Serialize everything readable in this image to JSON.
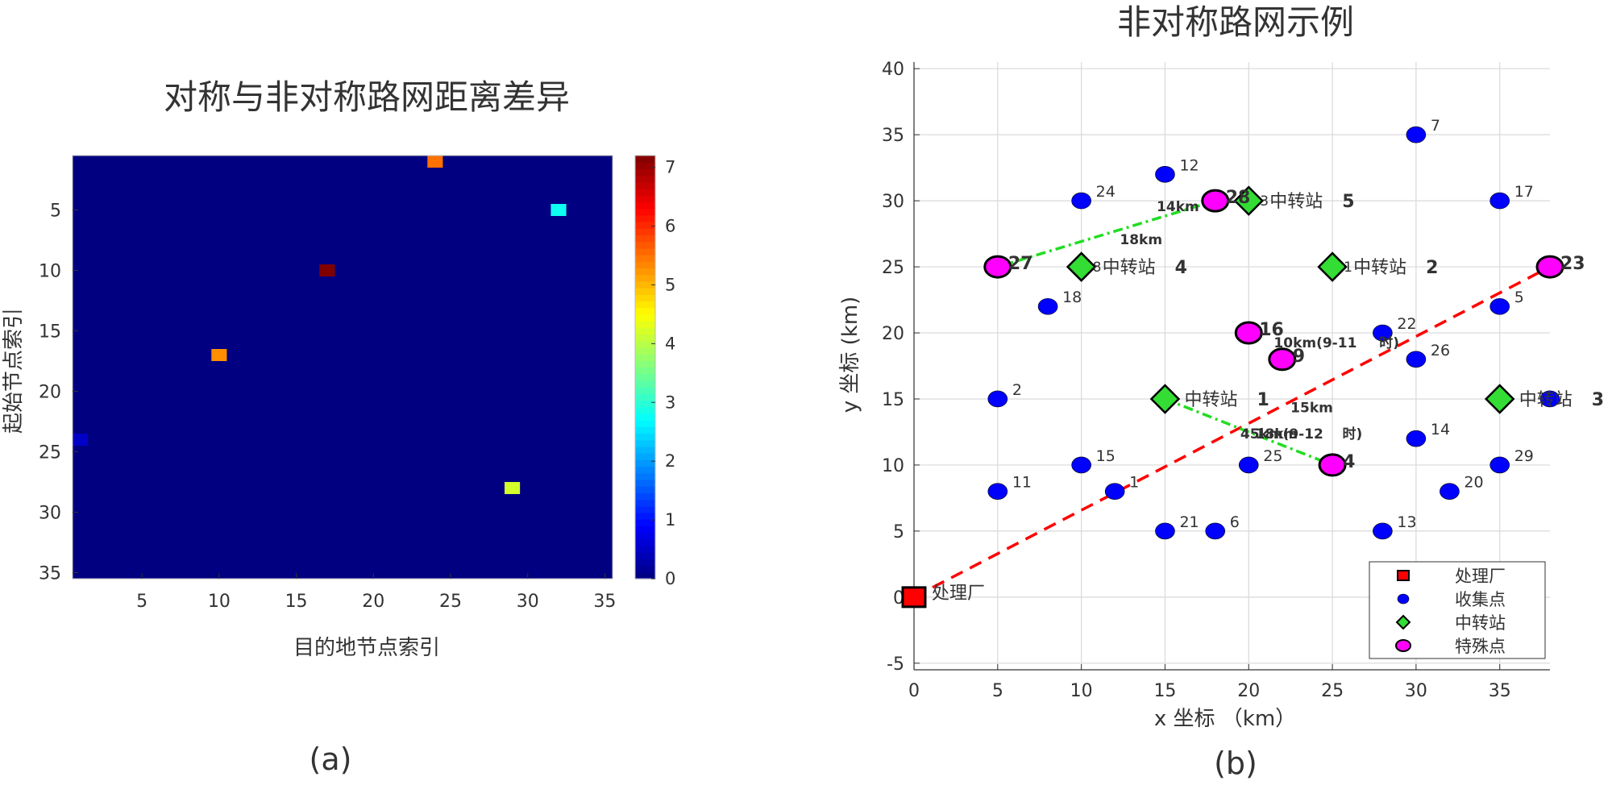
{
  "panel_labels": [
    "(a)",
    "(b)"
  ],
  "colors": {
    "collection": "#0000ff",
    "transfer": "#33dd33",
    "special": "#ff00ff",
    "plant": "#ff0000",
    "road_red": "#ff0000",
    "road_green": "#22dd22",
    "heat_bg": "#00008f"
  },
  "chart_data": [
    {
      "type": "heatmap",
      "title": "对称与非对称路网距离差异",
      "xlabel": "目的地节点索引",
      "ylabel": "起始节点索引",
      "xlim": [
        0.5,
        35.5
      ],
      "ylim": [
        35.5,
        0.5
      ],
      "xticks": [
        5,
        10,
        15,
        20,
        25,
        30,
        35
      ],
      "yticks": [
        5,
        10,
        15,
        20,
        25,
        30,
        35
      ],
      "colorbar_ticks": [
        0,
        1,
        2,
        3,
        4,
        5,
        6,
        7
      ],
      "colorbar_range": [
        0,
        7.2
      ],
      "background_value": 0,
      "cells": [
        {
          "row": 1,
          "col": 24,
          "value": 5.5
        },
        {
          "row": 5,
          "col": 32,
          "value": 2.8
        },
        {
          "row": 10,
          "col": 17,
          "value": 7.2
        },
        {
          "row": 17,
          "col": 10,
          "value": 5.3
        },
        {
          "row": 24,
          "col": 1,
          "value": 0.5
        },
        {
          "row": 28,
          "col": 29,
          "value": 4.2
        }
      ]
    },
    {
      "type": "scatter",
      "title": "非对称路网示例",
      "xlabel": "x 坐标 （km）",
      "ylabel": "y 坐标 (km)",
      "xlim": [
        0,
        38
      ],
      "ylim": [
        -5.5,
        40.5
      ],
      "xticks": [
        0,
        5,
        10,
        15,
        20,
        25,
        30,
        35
      ],
      "yticks": [
        -5,
        0,
        5,
        10,
        15,
        20,
        25,
        30,
        35,
        40
      ],
      "grid": true,
      "legend_position": "bottom-right",
      "legend": [
        "处理厂",
        "收集点",
        "中转站",
        "特殊点"
      ],
      "plant": {
        "x": 0,
        "y": 0,
        "label": "处理厂"
      },
      "collection_points": [
        {
          "id": "1",
          "x": 12,
          "y": 8
        },
        {
          "id": "2",
          "x": 5,
          "y": 15
        },
        {
          "id": "5",
          "x": 35,
          "y": 22
        },
        {
          "id": "6",
          "x": 18,
          "y": 5
        },
        {
          "id": "7",
          "x": 30,
          "y": 35
        },
        {
          "id": "11",
          "x": 5,
          "y": 8
        },
        {
          "id": "12",
          "x": 15,
          "y": 32
        },
        {
          "id": "13",
          "x": 28,
          "y": 5
        },
        {
          "id": "14",
          "x": 30,
          "y": 12
        },
        {
          "id": "15",
          "x": 10,
          "y": 10
        },
        {
          "id": "17",
          "x": 35,
          "y": 30
        },
        {
          "id": "18",
          "x": 8,
          "y": 22
        },
        {
          "id": "20",
          "x": 32,
          "y": 8
        },
        {
          "id": "21",
          "x": 15,
          "y": 5
        },
        {
          "id": "22",
          "x": 28,
          "y": 20
        },
        {
          "id": "24",
          "x": 10,
          "y": 30
        },
        {
          "id": "25",
          "x": 20,
          "y": 10
        },
        {
          "id": "26",
          "x": 30,
          "y": 18
        },
        {
          "id": "29",
          "x": 35,
          "y": 10
        },
        {
          "id": "",
          "x": 38,
          "y": 15
        }
      ],
      "transfer_stations": [
        {
          "x": 15,
          "y": 15,
          "pre": "",
          "label": "中转站",
          "num": "1"
        },
        {
          "x": 25,
          "y": 25,
          "pre": "1",
          "label": "中转站",
          "num": "2"
        },
        {
          "x": 35,
          "y": 15,
          "pre": "",
          "label": "中转站",
          "num": "3"
        },
        {
          "x": 10,
          "y": 25,
          "pre": "8",
          "label": "中转站",
          "num": "4"
        },
        {
          "x": 20,
          "y": 30,
          "pre": "3",
          "label": "中转站",
          "num": "5"
        }
      ],
      "special_points": [
        {
          "id": "4",
          "x": 25,
          "y": 10
        },
        {
          "id": "9",
          "x": 22,
          "y": 18
        },
        {
          "id": "16",
          "x": 20,
          "y": 20
        },
        {
          "id": "23",
          "x": 38,
          "y": 25
        },
        {
          "id": "27",
          "x": 5,
          "y": 25
        },
        {
          "id": "28",
          "x": 18,
          "y": 30
        }
      ],
      "red_dashed_roads": [
        {
          "from": [
            0,
            0
          ],
          "to": [
            38,
            25
          ]
        }
      ],
      "green_dashdot_roads": [
        {
          "from": [
            5,
            25
          ],
          "to": [
            18,
            30
          ]
        },
        {
          "from": [
            15,
            15
          ],
          "to": [
            25,
            10
          ]
        }
      ],
      "road_labels": [
        {
          "text": "14km",
          "x": 14.5,
          "y": 29.2,
          "color": "green"
        },
        {
          "text": "18km",
          "x": 12.3,
          "y": 26.7,
          "color": "red"
        },
        {
          "text": "10km(9-11",
          "x": 21.5,
          "y": 18.9,
          "color": "red"
        },
        {
          "text": "时)",
          "x": 27.8,
          "y": 18.9,
          "color": "red"
        },
        {
          "text": "15km",
          "x": 22.5,
          "y": 14.0,
          "color": "green"
        },
        {
          "text": "45km(9-12",
          "x": 19.5,
          "y": 12.0,
          "color": "red"
        },
        {
          "text": "18km",
          "x": 20.4,
          "y": 12.0,
          "color": "red"
        },
        {
          "text": "时)",
          "x": 25.6,
          "y": 12.0,
          "color": "red"
        }
      ]
    }
  ]
}
